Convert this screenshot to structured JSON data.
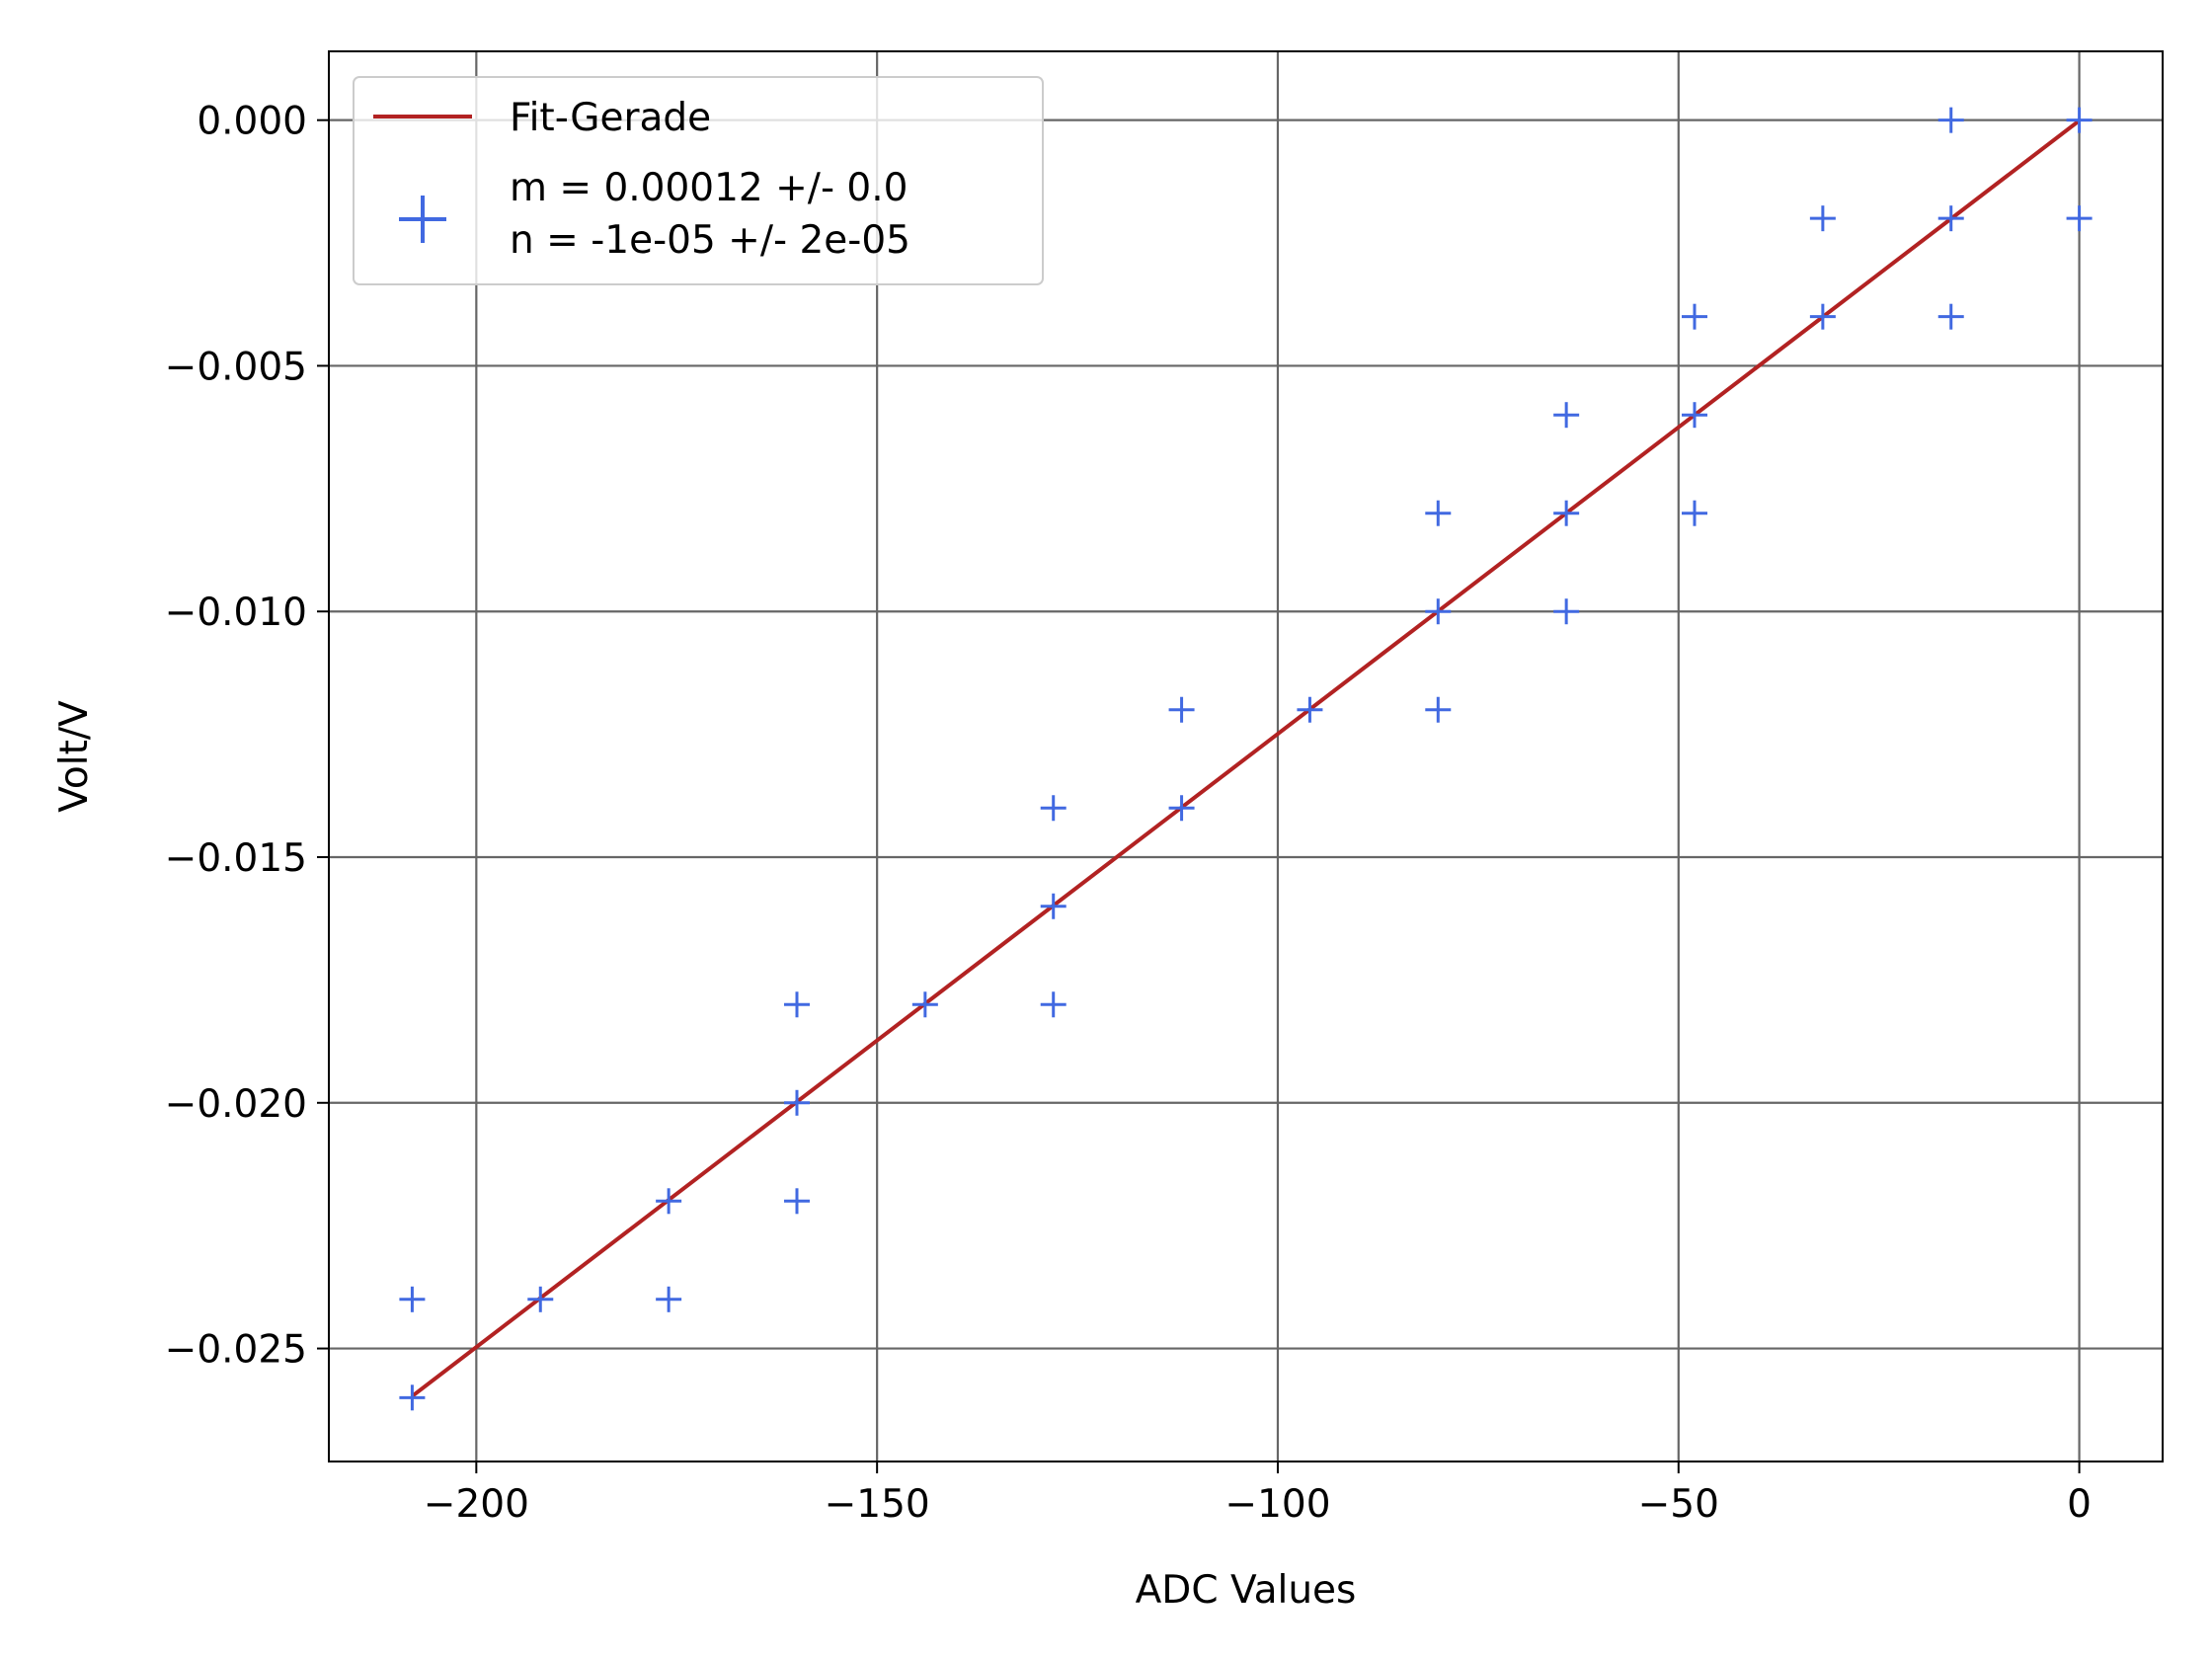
{
  "chart_data": {
    "type": "scatter",
    "title": "",
    "xlabel": "ADC Values",
    "ylabel": "Volt/V",
    "xlim": [
      -218.4,
      10.4
    ],
    "ylim": [
      -0.0273,
      0.0014
    ],
    "grid": true,
    "legend_position": "top-left",
    "x_ticks": [
      -200,
      -150,
      -100,
      -50,
      0
    ],
    "x_tick_labels": [
      "−200",
      "−150",
      "−100",
      "−50",
      "0"
    ],
    "y_ticks": [
      0.0,
      -0.005,
      -0.01,
      -0.015,
      -0.02,
      -0.025
    ],
    "y_tick_labels": [
      "0.000",
      "−0.005",
      "−0.010",
      "−0.015",
      "−0.020",
      "−0.025"
    ],
    "series": [
      {
        "name": "Fit-Gerade",
        "kind": "line",
        "color": "#b22222",
        "x": [
          -208,
          0
        ],
        "y": [
          -0.02597,
          -1e-05
        ]
      },
      {
        "name": "m = 0.00012 +/- 0.0\nn = -1e-05 +/- 2e-05",
        "legend_lines": [
          "m = 0.00012 +/- 0.0",
          "n = -1e-05 +/- 2e-05"
        ],
        "kind": "scatter",
        "marker": "plus",
        "color": "#4169e1",
        "points": [
          [
            0,
            0.0
          ],
          [
            0,
            -0.002
          ],
          [
            -16,
            0.0
          ],
          [
            -16,
            -0.002
          ],
          [
            -16,
            -0.004
          ],
          [
            -32,
            -0.002
          ],
          [
            -32,
            -0.004
          ],
          [
            -48,
            -0.004
          ],
          [
            -48,
            -0.006
          ],
          [
            -48,
            -0.008
          ],
          [
            -64,
            -0.006
          ],
          [
            -64,
            -0.008
          ],
          [
            -64,
            -0.01
          ],
          [
            -80,
            -0.008
          ],
          [
            -80,
            -0.01
          ],
          [
            -80,
            -0.012
          ],
          [
            -96,
            -0.012
          ],
          [
            -112,
            -0.012
          ],
          [
            -112,
            -0.014
          ],
          [
            -128,
            -0.014
          ],
          [
            -128,
            -0.016
          ],
          [
            -128,
            -0.018
          ],
          [
            -144,
            -0.018
          ],
          [
            -160,
            -0.018
          ],
          [
            -160,
            -0.02
          ],
          [
            -160,
            -0.022
          ],
          [
            -176,
            -0.022
          ],
          [
            -176,
            -0.024
          ],
          [
            -192,
            -0.024
          ],
          [
            -208,
            -0.024
          ],
          [
            -208,
            -0.026
          ]
        ]
      }
    ]
  }
}
